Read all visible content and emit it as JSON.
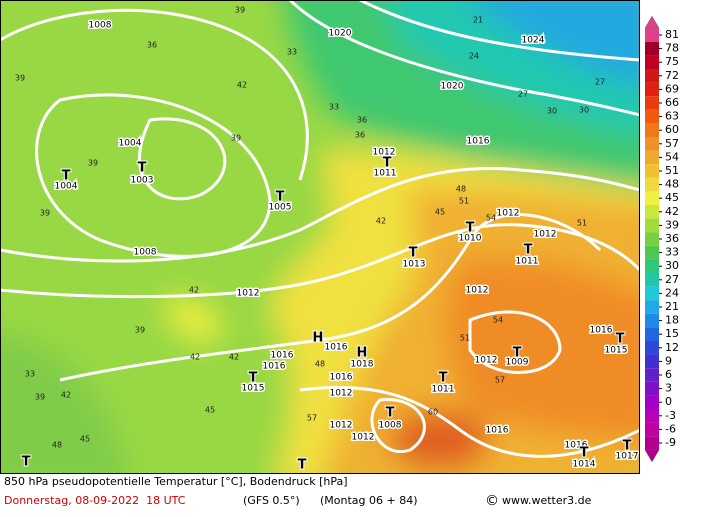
{
  "map": {
    "pressure_labels": [
      "1008",
      "1020",
      "1024",
      "1020",
      "1004",
      "1016",
      "1012",
      "1011",
      "1003",
      "1004",
      "1005",
      "1012",
      "1012",
      "1010",
      "1008",
      "1013",
      "1011",
      "1012",
      "1012",
      "1016",
      "1015",
      "1016",
      "1016",
      "1018",
      "1016",
      "1015",
      "1012",
      "1009",
      "1011",
      "1016",
      "1012",
      "1008",
      "1012",
      "1012",
      "1016",
      "1016",
      "1014",
      "1017"
    ],
    "centers": [
      "T",
      "T",
      "T",
      "T",
      "T",
      "T",
      "T",
      "T",
      "T",
      "T",
      "T",
      "T",
      "T",
      "T",
      "T",
      "T",
      "H",
      "H"
    ],
    "temperature_labels": [
      "39",
      "36",
      "33",
      "21",
      "24",
      "27",
      "30",
      "39",
      "42",
      "39",
      "39",
      "39",
      "36",
      "33",
      "42",
      "45",
      "48",
      "51",
      "54",
      "51",
      "42",
      "39",
      "42",
      "42",
      "45",
      "48",
      "51",
      "57",
      "54",
      "57",
      "60",
      "45",
      "48",
      "33",
      "39",
      "42",
      "36",
      "30",
      "27"
    ]
  },
  "colorbar": {
    "ticks": [
      81,
      78,
      75,
      72,
      69,
      66,
      63,
      60,
      57,
      54,
      51,
      48,
      45,
      42,
      39,
      36,
      33,
      30,
      27,
      24,
      21,
      18,
      15,
      12,
      9,
      6,
      3,
      0,
      -3,
      -6,
      -9
    ],
    "colors": [
      "#e0408a",
      "#a00028",
      "#c00020",
      "#d01818",
      "#e02010",
      "#e83c10",
      "#f05a10",
      "#f07818",
      "#f09028",
      "#f0a830",
      "#f0c030",
      "#f0d840",
      "#f0f040",
      "#c8e83c",
      "#a0dc3c",
      "#78d040",
      "#50c850",
      "#30c878",
      "#20c8a8",
      "#20c8d8",
      "#20a8e8",
      "#2088e8",
      "#2068e0",
      "#3048d8",
      "#4030d0",
      "#6020c8",
      "#8010c8",
      "#a000c8",
      "#b800b8",
      "#c000a0",
      "#b00090"
    ]
  },
  "footer": {
    "title": "850 hPa pseudopotentielle Temperatur [°C], Bodendruck [hPa]",
    "date": "Donnerstag, 08-09-2022  18 UTC",
    "model": "(GFS 0.5°)",
    "run": "(Montag 06 + 84)",
    "copyright": "©",
    "site": "www.wetter3.de"
  }
}
